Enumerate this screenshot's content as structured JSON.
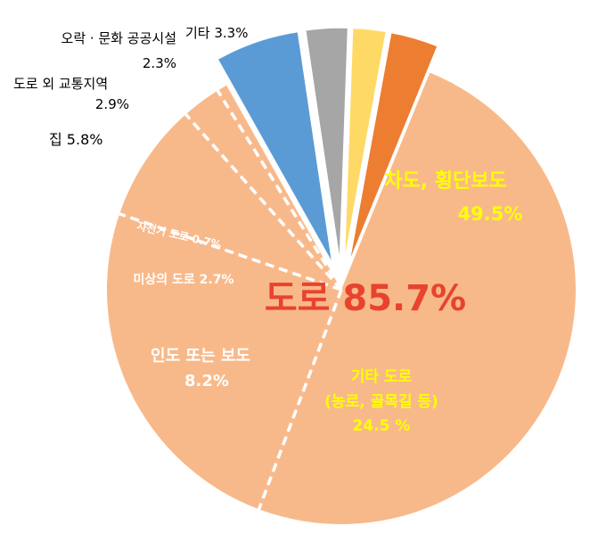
{
  "chart_data": {
    "type": "pie",
    "title": "",
    "slices": [
      {
        "label": "차도, 횡단보도",
        "value": 49.5,
        "value_label": "49.5%",
        "group": "road",
        "color": "#F8B98A"
      },
      {
        "label": "기타 도로\n(농로, 골목길 등)",
        "value": 24.5,
        "value_label": "24.5 %",
        "group": "road",
        "color": "#F8B98A"
      },
      {
        "label": "인도 또는 보도",
        "value": 8.2,
        "value_label": "8.2%",
        "group": "road",
        "color": "#F8B98A"
      },
      {
        "label": "미상의 도로",
        "value": 2.7,
        "value_label": "2.7%",
        "group": "road",
        "color": "#F8B98A"
      },
      {
        "label": "자전거 도로",
        "value": 0.7,
        "value_label": "0.7%",
        "group": "road",
        "color": "#F8B98A"
      },
      {
        "label": "집",
        "value": 5.8,
        "value_label": "5.8%",
        "group": "other",
        "color": "#5B9BD5"
      },
      {
        "label": "도로 외 교통지역",
        "value": 2.9,
        "value_label": "2.9%",
        "group": "other",
        "color": "#A6A6A6"
      },
      {
        "label": "오락 · 문화 공공시설",
        "value": 2.3,
        "value_label": "2.3%",
        "group": "other",
        "color": "#FFD966"
      },
      {
        "label": "기타",
        "value": 3.3,
        "value_label": "3.3%",
        "group": "other",
        "color": "#ED7D31"
      }
    ],
    "group_annotation": {
      "text": "도로 85.7%",
      "color": "#E8432E"
    },
    "colors": {
      "road": "#F8B98A",
      "divider": "#ffffff",
      "highlight_text": "#FFFF00",
      "inner_text": "#ffffff",
      "outer_text": "#000000"
    }
  }
}
